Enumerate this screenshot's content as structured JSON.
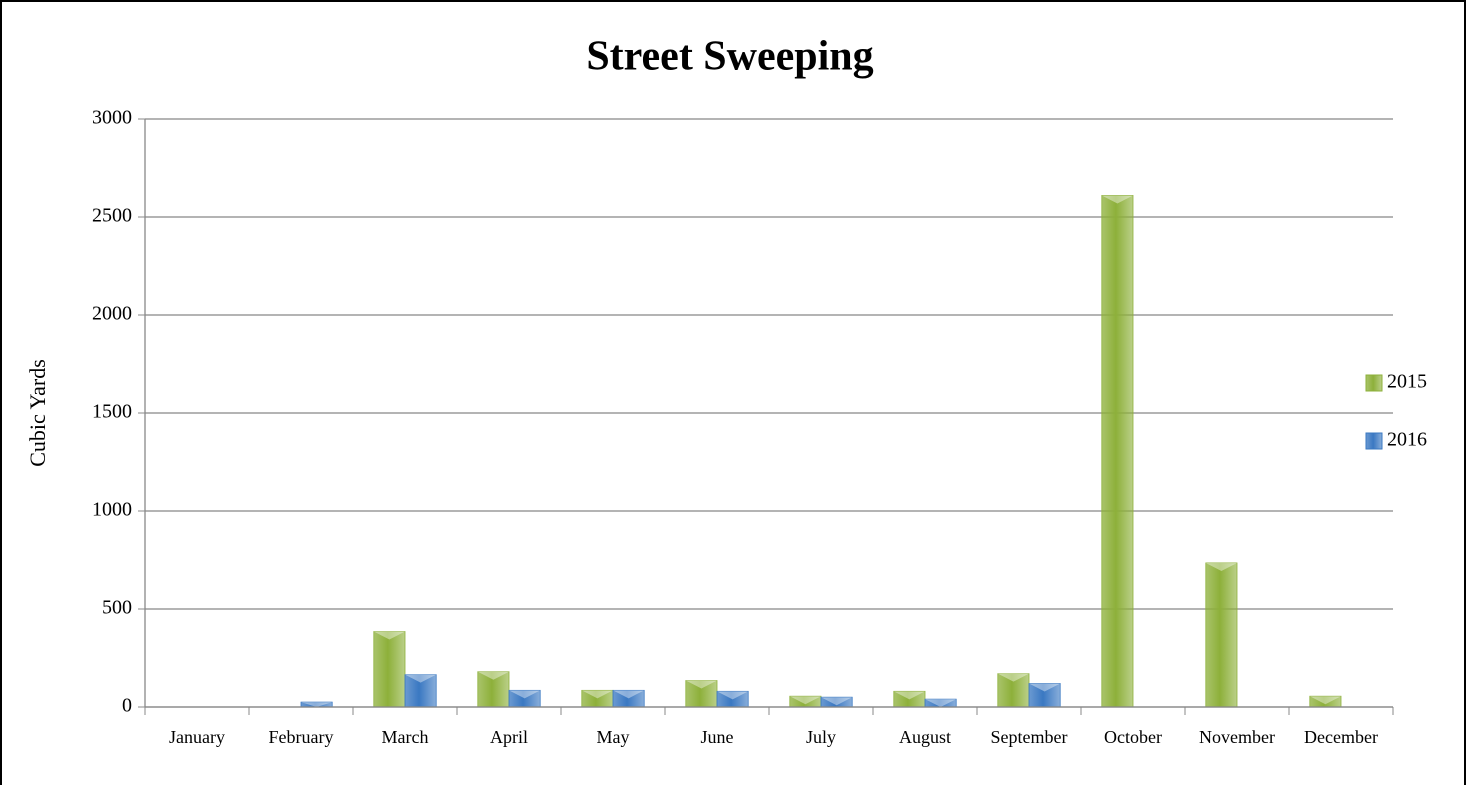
{
  "chart_data": {
    "type": "bar",
    "title": "Street Sweeping",
    "ylabel": "Cubic Yards",
    "categories": [
      "January",
      "February",
      "March",
      "April",
      "May",
      "June",
      "July",
      "August",
      "September",
      "October",
      "November",
      "December"
    ],
    "series": [
      {
        "name": "2015",
        "color": "#8db03a",
        "values": [
          0,
          0,
          385,
          180,
          85,
          135,
          55,
          80,
          170,
          2610,
          735,
          55
        ]
      },
      {
        "name": "2016",
        "color": "#3a78c2",
        "values": [
          0,
          25,
          165,
          85,
          85,
          80,
          50,
          40,
          120,
          0,
          0,
          0
        ]
      }
    ],
    "ylim": [
      0,
      3000
    ],
    "yticks": [
      0,
      500,
      1000,
      1500,
      2000,
      2500,
      3000
    ],
    "grid": true,
    "legend": "right"
  }
}
